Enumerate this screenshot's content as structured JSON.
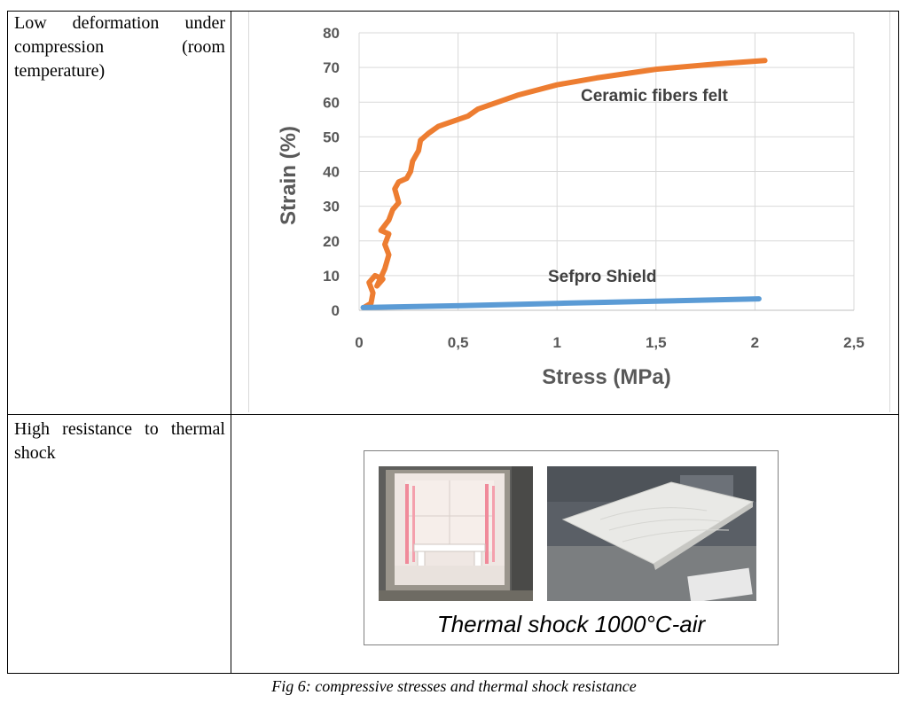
{
  "table": {
    "rows": [
      {
        "property": "Low deformation under compression (room temperature)"
      },
      {
        "property": "High resistance to thermal shock"
      }
    ]
  },
  "chart_data": {
    "type": "line",
    "xlabel": "Stress (MPa)",
    "ylabel": "Strain  (%)",
    "xlim": [
      0,
      2.5
    ],
    "ylim": [
      0,
      80
    ],
    "x_ticks": [
      "0",
      "0,5",
      "1",
      "1,5",
      "2",
      "2,5"
    ],
    "y_ticks": [
      "0",
      "10",
      "20",
      "30",
      "40",
      "50",
      "60",
      "70",
      "80"
    ],
    "grid": true,
    "series": [
      {
        "name": "Ceramic fibers felt",
        "color": "#ed7d31",
        "points": [
          [
            0.03,
            1
          ],
          [
            0.06,
            2
          ],
          [
            0.07,
            5
          ],
          [
            0.05,
            8
          ],
          [
            0.08,
            10
          ],
          [
            0.12,
            9
          ],
          [
            0.09,
            7
          ],
          [
            0.13,
            12
          ],
          [
            0.15,
            16
          ],
          [
            0.13,
            19
          ],
          [
            0.15,
            22
          ],
          [
            0.11,
            23
          ],
          [
            0.15,
            26
          ],
          [
            0.17,
            29
          ],
          [
            0.2,
            31
          ],
          [
            0.18,
            35
          ],
          [
            0.2,
            37
          ],
          [
            0.24,
            38
          ],
          [
            0.26,
            40
          ],
          [
            0.27,
            43
          ],
          [
            0.3,
            46
          ],
          [
            0.31,
            49
          ],
          [
            0.35,
            51
          ],
          [
            0.4,
            53
          ],
          [
            0.5,
            55
          ],
          [
            0.55,
            56
          ],
          [
            0.6,
            58
          ],
          [
            0.8,
            62
          ],
          [
            1.0,
            65
          ],
          [
            1.2,
            67
          ],
          [
            1.5,
            69.5
          ],
          [
            1.8,
            71
          ],
          [
            2.05,
            72
          ]
        ]
      },
      {
        "name": "Sefpro Shield",
        "color": "#5b9bd5",
        "points": [
          [
            0.02,
            0.8
          ],
          [
            0.5,
            1.3
          ],
          [
            1.0,
            2
          ],
          [
            1.5,
            2.6
          ],
          [
            2.02,
            3.3
          ]
        ]
      }
    ]
  },
  "photo_panel": {
    "caption": "Thermal shock 1000°C-air"
  },
  "figure_caption": "Fig 6: compressive stresses and thermal shock resistance"
}
